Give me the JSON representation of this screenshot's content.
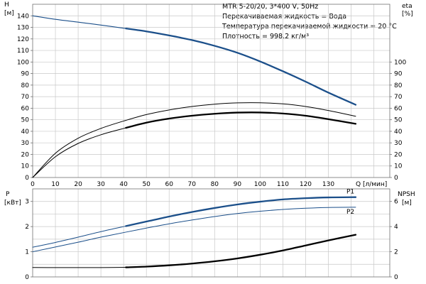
{
  "chart_data": [
    {
      "type": "line",
      "title": "MTR 5-20/20, 3*400 V, 50Hz",
      "info_lines": [
        "Перекачиваемая жидкость = Вода",
        "Температура перекачиваемой жидкости = 20 °C",
        "Плотность = 998.2 кг/м³"
      ],
      "xlabel": "Q [л/мин]",
      "xlim": [
        0,
        157
      ],
      "x_ticks": [
        0,
        10,
        20,
        30,
        40,
        50,
        60,
        70,
        80,
        90,
        100,
        110,
        120,
        130
      ],
      "y_left": {
        "label_1": "H",
        "label_2": "[м]",
        "ylim": [
          0,
          150
        ],
        "ticks": [
          0,
          10,
          20,
          30,
          40,
          50,
          60,
          70,
          80,
          90,
          100,
          110,
          120,
          130,
          140
        ]
      },
      "y_right": {
        "label_1": "eta",
        "label_2": "[%]",
        "ylim": [
          0,
          150
        ],
        "ticks": [
          0,
          10,
          20,
          30,
          40,
          50,
          60,
          70,
          80,
          90,
          100
        ]
      },
      "grid": true,
      "series": [
        {
          "axis": "left",
          "color": "#1b4f8a",
          "width": 1.1,
          "x": [
            0,
            10,
            20,
            30,
            41
          ],
          "y": [
            140,
            137,
            134.5,
            132,
            129
          ]
        },
        {
          "axis": "left",
          "color": "#1b4f8a",
          "width": 2.3,
          "x": [
            41,
            50,
            60,
            70,
            80,
            90,
            100,
            110,
            120,
            130,
            142
          ],
          "y": [
            129,
            126.5,
            123,
            119,
            114,
            108,
            100.5,
            92,
            83,
            73.5,
            63
          ]
        },
        {
          "axis": "right",
          "color": "#000000",
          "width": 1.0,
          "x": [
            0,
            10,
            20,
            30,
            41,
            50,
            60,
            70,
            80,
            90,
            100,
            110,
            120,
            130,
            142
          ],
          "y": [
            0,
            21,
            34,
            42.5,
            49.5,
            54.5,
            58.5,
            61.5,
            63.5,
            64.6,
            64.7,
            63.8,
            61.5,
            58,
            53
          ]
        },
        {
          "axis": "right",
          "color": "#000000",
          "width": 1.0,
          "x": [
            0,
            10,
            20,
            30,
            41
          ],
          "y": [
            0,
            18,
            29.5,
            37,
            43
          ]
        },
        {
          "axis": "right",
          "color": "#000000",
          "width": 2.3,
          "x": [
            41,
            50,
            60,
            70,
            80,
            90,
            100,
            110,
            120,
            130,
            142
          ],
          "y": [
            43,
            47.5,
            51,
            53.5,
            55.2,
            56.2,
            56.3,
            55.4,
            53.5,
            50.5,
            46.5
          ]
        }
      ]
    },
    {
      "type": "line",
      "xlim": [
        0,
        157
      ],
      "y_left": {
        "label_1": "P",
        "label_2": "[кВт]",
        "ylim": [
          0,
          3.5
        ],
        "ticks": [
          0,
          1,
          2,
          3
        ]
      },
      "y_right": {
        "label_1": "NPSH",
        "label_2": "[м]",
        "ylim": [
          0,
          7
        ],
        "ticks": [
          0,
          2,
          4,
          6
        ]
      },
      "grid": true,
      "series": [
        {
          "name": "P1",
          "axis": "left",
          "color": "#1b4f8a",
          "width": 1.0,
          "x": [
            0,
            10,
            20,
            30,
            41
          ],
          "y": [
            1.18,
            1.37,
            1.58,
            1.8,
            2.02
          ]
        },
        {
          "name": "P1",
          "axis": "left",
          "color": "#1b4f8a",
          "width": 2.3,
          "label_at_end": true,
          "x": [
            41,
            50,
            60,
            70,
            80,
            90,
            100,
            110,
            120,
            130,
            142
          ],
          "y": [
            2.02,
            2.2,
            2.4,
            2.58,
            2.74,
            2.88,
            2.99,
            3.08,
            3.13,
            3.16,
            3.17
          ]
        },
        {
          "name": "P2",
          "axis": "left",
          "color": "#1b4f8a",
          "width": 1.0,
          "label_at_end": true,
          "x": [
            0,
            10,
            20,
            30,
            41,
            50,
            60,
            70,
            80,
            90,
            100,
            110,
            120,
            130,
            142
          ],
          "y": [
            1.0,
            1.19,
            1.38,
            1.58,
            1.78,
            1.94,
            2.11,
            2.26,
            2.4,
            2.52,
            2.61,
            2.68,
            2.73,
            2.76,
            2.77
          ]
        },
        {
          "axis": "right",
          "color": "#000000",
          "width": 1.0,
          "x": [
            0,
            10,
            20,
            30,
            41
          ],
          "y": [
            0.75,
            0.74,
            0.74,
            0.74,
            0.76
          ]
        },
        {
          "axis": "right",
          "color": "#000000",
          "width": 2.3,
          "x": [
            41,
            50,
            60,
            70,
            80,
            90,
            100,
            110,
            120,
            130,
            142
          ],
          "y": [
            0.76,
            0.82,
            0.92,
            1.06,
            1.24,
            1.47,
            1.76,
            2.1,
            2.5,
            2.9,
            3.35
          ]
        }
      ]
    }
  ]
}
